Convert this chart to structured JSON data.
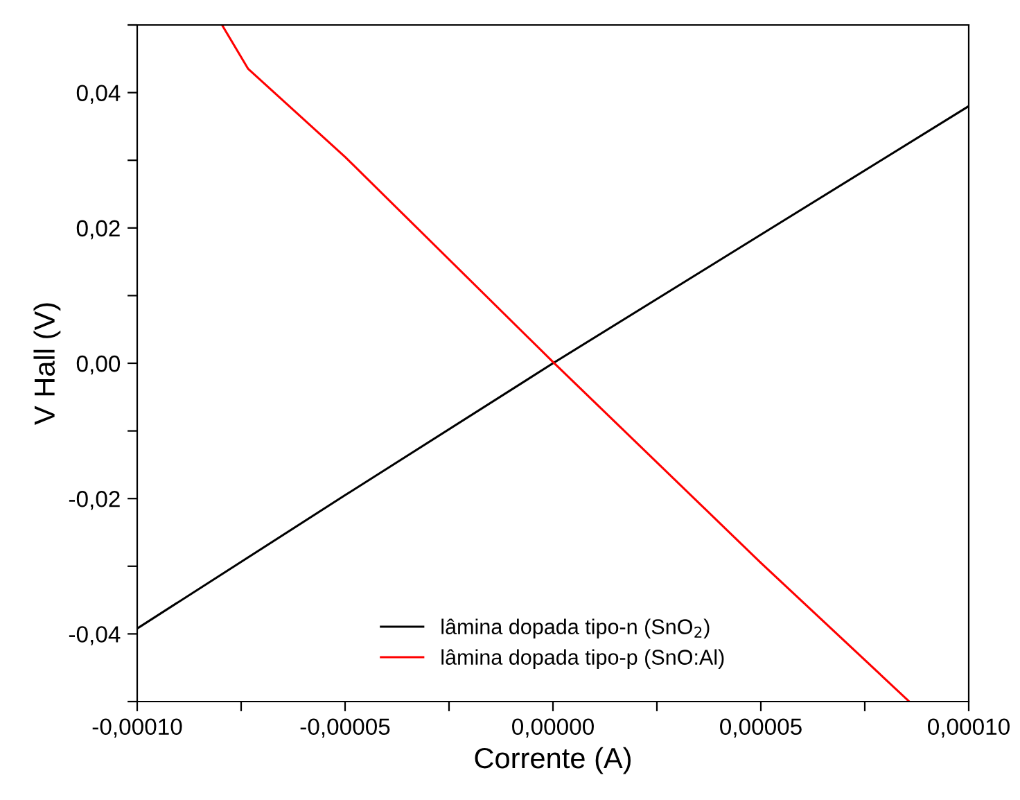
{
  "chart_data": {
    "type": "line",
    "xlabel": "Corrente (A)",
    "ylabel": "V Hall (V)",
    "xlim": [
      -0.0001,
      0.0001
    ],
    "ylim": [
      -0.05,
      0.05
    ],
    "xticks": [
      {
        "value": -0.0001,
        "label": "-0,00010"
      },
      {
        "value": -7.5e-05,
        "label": null
      },
      {
        "value": -5e-05,
        "label": "-0,00005"
      },
      {
        "value": -2.5e-05,
        "label": null
      },
      {
        "value": 0,
        "label": "0,00000"
      },
      {
        "value": 2.5e-05,
        "label": null
      },
      {
        "value": 5e-05,
        "label": "0,00005"
      },
      {
        "value": 7.5e-05,
        "label": null
      },
      {
        "value": 0.0001,
        "label": "0,00010"
      }
    ],
    "yticks": [
      {
        "value": -0.05,
        "label": null
      },
      {
        "value": -0.04,
        "label": "-0,04"
      },
      {
        "value": -0.03,
        "label": null
      },
      {
        "value": -0.02,
        "label": "-0,02"
      },
      {
        "value": -0.01,
        "label": null
      },
      {
        "value": 0,
        "label": "0,00"
      },
      {
        "value": 0.01,
        "label": null
      },
      {
        "value": 0.02,
        "label": "0,02"
      },
      {
        "value": 0.03,
        "label": null
      },
      {
        "value": 0.04,
        "label": "0,04"
      },
      {
        "value": 0.05,
        "label": null
      }
    ],
    "legend": "bottom",
    "grid": false,
    "marker": "none",
    "line_style": "solid",
    "series": [
      {
        "name": "lâmina dopada tipo-n (SnO$_{2}$)",
        "color": "#000000",
        "x": [
          -0.0001,
          -5e-05,
          0,
          5e-05,
          0.0001
        ],
        "values": [
          -0.0392,
          -0.0195,
          0.0,
          0.019,
          0.038
        ]
      },
      {
        "name": "lâmina dopada tipo-p (SnO:Al)",
        "color": "#ff0000",
        "x": [
          -7.96e-05,
          -7.33e-05,
          -5e-05,
          0,
          5e-05,
          8.57e-05
        ],
        "values": [
          0.05,
          0.0435,
          0.0305,
          0.0002,
          -0.0295,
          -0.05
        ]
      }
    ]
  }
}
